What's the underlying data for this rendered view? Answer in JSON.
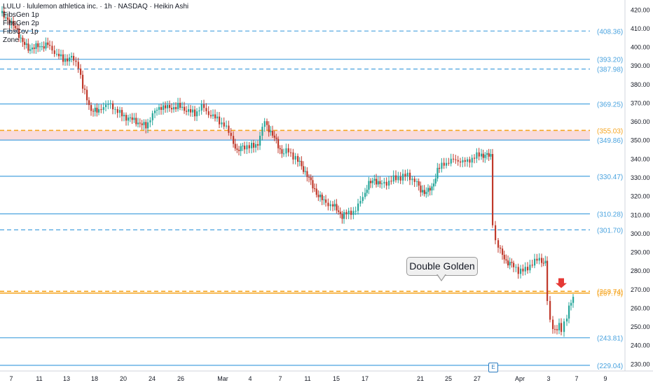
{
  "header": {
    "title": "LULU · lululemon athletica inc. · 1h · NASDAQ · Heikin Ashi",
    "indicators": [
      "FibsGen 1p",
      "FibsGen 2p",
      "FibsCov 1p",
      "Zone"
    ]
  },
  "callout": {
    "text": "Double Golden"
  },
  "earnings_marker": {
    "label": "E"
  },
  "colors": {
    "up": "#26a69a",
    "down": "#c0392b",
    "fib_line": "#4aa3df",
    "golden_line": "#f5a623",
    "zone_fill": "#f8d7d7",
    "arrow": "#e53935"
  },
  "chart_data": {
    "type": "candlestick",
    "title": "LULU · lululemon athletica inc. · 1h · NASDAQ · Heikin Ashi",
    "ylim": [
      226,
      425
    ],
    "yticks": [
      230,
      240,
      250,
      260,
      270,
      280,
      290,
      300,
      310,
      320,
      330,
      340,
      350,
      360,
      370,
      380,
      390,
      400,
      410,
      420
    ],
    "ytick_labels": [
      "230.00",
      "240.00",
      "250.00",
      "260.00",
      "270.00",
      "280.00",
      "290.00",
      "300.00",
      "310.00",
      "320.00",
      "330.00",
      "340.00",
      "350.00",
      "360.00",
      "370.00",
      "380.00",
      "390.00",
      "400.00",
      "410.00",
      "420.00"
    ],
    "xtick_labels": [
      "7",
      "11",
      "13",
      "18",
      "20",
      "24",
      "26",
      "Mar",
      "4",
      "7",
      "11",
      "15",
      "17",
      "21",
      "25",
      "27",
      "Apr",
      "3",
      "7",
      "9"
    ],
    "x_positions": [
      16,
      56,
      95,
      135,
      176,
      217,
      258,
      318,
      357,
      400,
      439,
      480,
      521,
      600,
      640,
      681,
      742,
      783,
      823,
      864
    ],
    "price_levels": [
      {
        "value": 408.36,
        "label": "(408.36)",
        "style": "dashed",
        "color": "fib"
      },
      {
        "value": 393.2,
        "label": "(393.20)",
        "style": "solid",
        "color": "fib"
      },
      {
        "value": 387.98,
        "label": "(387.98)",
        "style": "dashed",
        "color": "fib"
      },
      {
        "value": 369.25,
        "label": "(369.25)",
        "style": "solid",
        "color": "fib"
      },
      {
        "value": 355.03,
        "label": "(355.03)",
        "style": "dashed",
        "color": "golden"
      },
      {
        "value": 349.86,
        "label": "(349.86)",
        "style": "solid",
        "color": "fib"
      },
      {
        "value": 330.47,
        "label": "(330.47)",
        "style": "solid",
        "color": "fib"
      },
      {
        "value": 310.28,
        "label": "(310.28)",
        "style": "solid",
        "color": "fib"
      },
      {
        "value": 301.7,
        "label": "(301.70)",
        "style": "dashed",
        "color": "fib"
      },
      {
        "value": 268.74,
        "label": "(268.74)",
        "style": "dashed",
        "color": "golden"
      },
      {
        "value": 267.79,
        "label": "(267.79)",
        "style": "solid",
        "color": "golden"
      },
      {
        "value": 243.81,
        "label": "(243.81)",
        "style": "solid",
        "color": "fib"
      },
      {
        "value": 229.04,
        "label": "(229.04)",
        "style": "solid",
        "color": "fib"
      }
    ],
    "zone": [
      349.86,
      355.03
    ],
    "price_path": [
      [
        2,
        418
      ],
      [
        10,
        416
      ],
      [
        18,
        412
      ],
      [
        26,
        409
      ],
      [
        34,
        402
      ],
      [
        42,
        399
      ],
      [
        56,
        400
      ],
      [
        70,
        401
      ],
      [
        80,
        397
      ],
      [
        92,
        393
      ],
      [
        104,
        394
      ],
      [
        114,
        390
      ],
      [
        120,
        378
      ],
      [
        126,
        372
      ],
      [
        132,
        366
      ],
      [
        140,
        365
      ],
      [
        150,
        368
      ],
      [
        160,
        369
      ],
      [
        170,
        365
      ],
      [
        182,
        362
      ],
      [
        196,
        360
      ],
      [
        210,
        357
      ],
      [
        220,
        364
      ],
      [
        232,
        368
      ],
      [
        244,
        367
      ],
      [
        256,
        368
      ],
      [
        268,
        366
      ],
      [
        280,
        364
      ],
      [
        290,
        368
      ],
      [
        300,
        364
      ],
      [
        312,
        361
      ],
      [
        322,
        358
      ],
      [
        332,
        352
      ],
      [
        340,
        343
      ],
      [
        348,
        347
      ],
      [
        358,
        346
      ],
      [
        370,
        348
      ],
      [
        380,
        360
      ],
      [
        388,
        354
      ],
      [
        396,
        349
      ],
      [
        404,
        343
      ],
      [
        414,
        344
      ],
      [
        424,
        340
      ],
      [
        432,
        336
      ],
      [
        440,
        331
      ],
      [
        448,
        325
      ],
      [
        456,
        320
      ],
      [
        464,
        317
      ],
      [
        474,
        315
      ],
      [
        482,
        313
      ],
      [
        490,
        309
      ],
      [
        500,
        311
      ],
      [
        510,
        312
      ],
      [
        520,
        320
      ],
      [
        528,
        326
      ],
      [
        536,
        329
      ],
      [
        544,
        326
      ],
      [
        554,
        327
      ],
      [
        564,
        329
      ],
      [
        574,
        330
      ],
      [
        584,
        331
      ],
      [
        594,
        328
      ],
      [
        602,
        323
      ],
      [
        610,
        322
      ],
      [
        618,
        324
      ],
      [
        626,
        334
      ],
      [
        636,
        337
      ],
      [
        646,
        339
      ],
      [
        656,
        339
      ],
      [
        666,
        338
      ],
      [
        676,
        340
      ],
      [
        686,
        342
      ],
      [
        694,
        342
      ],
      [
        702,
        341
      ],
      [
        706,
        305
      ],
      [
        710,
        296
      ],
      [
        716,
        290
      ],
      [
        724,
        285
      ],
      [
        732,
        283
      ],
      [
        742,
        280
      ],
      [
        752,
        280
      ],
      [
        762,
        284
      ],
      [
        772,
        286
      ],
      [
        780,
        284
      ],
      [
        784,
        264
      ],
      [
        788,
        252
      ],
      [
        794,
        248
      ],
      [
        800,
        250
      ],
      [
        804,
        247
      ],
      [
        808,
        252
      ],
      [
        814,
        260
      ],
      [
        820,
        265
      ]
    ]
  }
}
